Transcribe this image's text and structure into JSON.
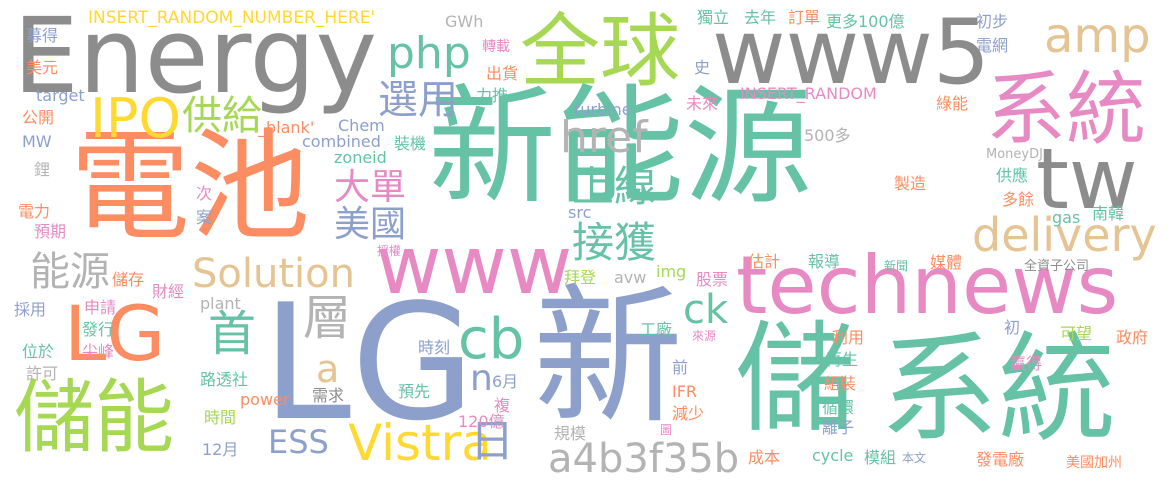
{
  "palette": {
    "green": "#66c2a5",
    "orange": "#fc8d62",
    "blue": "#8da0cb",
    "pink": "#e78ac3",
    "lime": "#a6d854",
    "yellow": "#ffd92f",
    "tan": "#e5c494",
    "gray": "#b3b3b3",
    "dark": "#8c8c8c"
  },
  "words": [
    {
      "text": "新能源",
      "color": "green"
    },
    {
      "text": "新",
      "color": "blue"
    },
    {
      "text": "LG",
      "color": "blue"
    },
    {
      "text": "電池",
      "color": "orange"
    },
    {
      "text": "Energy",
      "color": "dark"
    },
    {
      "text": "儲",
      "color": "green"
    },
    {
      "text": "系統",
      "color": "green"
    },
    {
      "text": "全球",
      "color": "lime"
    },
    {
      "text": "www5",
      "color": "dark"
    },
    {
      "text": "technews",
      "color": "pink"
    },
    {
      "text": "www",
      "color": "pink"
    },
    {
      "text": "系統",
      "color": "pink"
    },
    {
      "text": "tw",
      "color": "dark"
    },
    {
      "text": "儲能",
      "color": "lime"
    },
    {
      "text": "LG",
      "color": "orange"
    },
    {
      "text": "amp",
      "color": "tan"
    },
    {
      "text": "delivery",
      "color": "tan"
    },
    {
      "text": "Vistra",
      "color": "yellow"
    },
    {
      "text": "日",
      "color": "blue"
    },
    {
      "text": "a4b3f35b",
      "color": "gray"
    },
    {
      "text": "php",
      "color": "green"
    },
    {
      "text": "IPO",
      "color": "yellow"
    },
    {
      "text": "Solution",
      "color": "tan"
    },
    {
      "text": "href",
      "color": "gray"
    },
    {
      "text": "選用",
      "color": "blue"
    },
    {
      "text": "上線",
      "color": "green"
    },
    {
      "text": "接獲",
      "color": "green"
    },
    {
      "text": "大單",
      "color": "pink"
    },
    {
      "text": "美國",
      "color": "blue"
    },
    {
      "text": "供給",
      "color": "lime"
    },
    {
      "text": "能源",
      "color": "gray"
    },
    {
      "text": "首",
      "color": "green"
    },
    {
      "text": "層",
      "color": "gray"
    },
    {
      "text": "cb",
      "color": "green"
    },
    {
      "text": "ck",
      "color": "green"
    },
    {
      "text": "n",
      "color": "blue"
    },
    {
      "text": "a",
      "color": "tan"
    },
    {
      "text": "ESS",
      "color": "blue"
    },
    {
      "text": "INSERT_RANDOM_NUMBER_HERE'",
      "color": "yellow"
    },
    {
      "text": "GWh",
      "color": "gray"
    },
    {
      "text": "獨立",
      "color": "green"
    },
    {
      "text": "去年",
      "color": "green"
    },
    {
      "text": "訂單",
      "color": "orange"
    },
    {
      "text": "更多100億",
      "color": "green"
    },
    {
      "text": "初步",
      "color": "blue"
    },
    {
      "text": "電網",
      "color": "blue"
    },
    {
      "text": "募得",
      "color": "blue"
    },
    {
      "text": "美元",
      "color": "orange"
    },
    {
      "text": "target",
      "color": "blue"
    },
    {
      "text": "公開",
      "color": "orange"
    },
    {
      "text": "MW",
      "color": "blue"
    },
    {
      "text": "鋰",
      "color": "gray"
    },
    {
      "text": "電力",
      "color": "orange"
    },
    {
      "text": "預期",
      "color": "pink"
    },
    {
      "text": "儲存",
      "color": "orange"
    },
    {
      "text": "財經",
      "color": "pink"
    },
    {
      "text": "採用",
      "color": "blue"
    },
    {
      "text": "申請",
      "color": "pink"
    },
    {
      "text": "發行",
      "color": "green"
    },
    {
      "text": "位於",
      "color": "green"
    },
    {
      "text": "尖峰",
      "color": "pink"
    },
    {
      "text": "許可",
      "color": "gray"
    },
    {
      "text": "路透社",
      "color": "green"
    },
    {
      "text": "時間",
      "color": "lime"
    },
    {
      "text": "12月",
      "color": "blue"
    },
    {
      "text": "power",
      "color": "orange"
    },
    {
      "text": "需求",
      "color": "dark"
    },
    {
      "text": "plant",
      "color": "gray"
    },
    {
      "text": "combined",
      "color": "blue"
    },
    {
      "text": "Chem",
      "color": "blue"
    },
    {
      "text": "_blank'",
      "color": "orange"
    },
    {
      "text": "zoneid",
      "color": "green"
    },
    {
      "text": "裝機",
      "color": "green"
    },
    {
      "text": "出貨",
      "color": "orange"
    },
    {
      "text": "力推",
      "color": "green"
    },
    {
      "text": "轉載",
      "color": "pink"
    },
    {
      "text": "史",
      "color": "blue"
    },
    {
      "text": "turbine",
      "color": "blue"
    },
    {
      "text": "未來",
      "color": "pink"
    },
    {
      "text": "INSERT_RANDOM",
      "color": "pink"
    },
    {
      "text": "綠能",
      "color": "orange"
    },
    {
      "text": "500多",
      "color": "gray"
    },
    {
      "text": "MoneyDJ",
      "color": "gray"
    },
    {
      "text": "供應",
      "color": "green"
    },
    {
      "text": "製造",
      "color": "orange"
    },
    {
      "text": "多餘",
      "color": "orange"
    },
    {
      "text": "南韓",
      "color": "green"
    },
    {
      "text": "gas",
      "color": "green"
    },
    {
      "text": "次",
      "color": "pink"
    },
    {
      "text": "案",
      "color": "blue"
    },
    {
      "text": "src",
      "color": "blue"
    },
    {
      "text": "授權",
      "color": "pink"
    },
    {
      "text": "拜登",
      "color": "lime"
    },
    {
      "text": "avw",
      "color": "gray"
    },
    {
      "text": "img",
      "color": "lime"
    },
    {
      "text": "股票",
      "color": "pink"
    },
    {
      "text": "估計",
      "color": "orange"
    },
    {
      "text": "報導",
      "color": "green"
    },
    {
      "text": "新聞",
      "color": "green"
    },
    {
      "text": "媒體",
      "color": "orange"
    },
    {
      "text": "全資子公司",
      "color": "dark"
    },
    {
      "text": "工廠",
      "color": "green"
    },
    {
      "text": "來源",
      "color": "pink"
    },
    {
      "text": "利用",
      "color": "orange"
    },
    {
      "text": "初",
      "color": "blue"
    },
    {
      "text": "可望",
      "color": "lime"
    },
    {
      "text": "政府",
      "color": "orange"
    },
    {
      "text": "時刻",
      "color": "blue"
    },
    {
      "text": "6月",
      "color": "blue"
    },
    {
      "text": "前",
      "color": "blue"
    },
    {
      "text": "預先",
      "color": "green"
    },
    {
      "text": "再生",
      "color": "green"
    },
    {
      "text": "贏得",
      "color": "pink"
    },
    {
      "text": "IFR",
      "color": "orange"
    },
    {
      "text": "組裝",
      "color": "orange"
    },
    {
      "text": "複",
      "color": "pink"
    },
    {
      "text": "減少",
      "color": "orange"
    },
    {
      "text": "循環",
      "color": "green"
    },
    {
      "text": "120億",
      "color": "pink"
    },
    {
      "text": "離子",
      "color": "blue"
    },
    {
      "text": "規模",
      "color": "gray"
    },
    {
      "text": "圖",
      "color": "pink"
    },
    {
      "text": "成本",
      "color": "orange"
    },
    {
      "text": "cycle",
      "color": "green"
    },
    {
      "text": "模組",
      "color": "green"
    },
    {
      "text": "本文",
      "color": "blue"
    },
    {
      "text": "發電廠",
      "color": "orange"
    },
    {
      "text": "美國加州",
      "color": "orange"
    }
  ]
}
